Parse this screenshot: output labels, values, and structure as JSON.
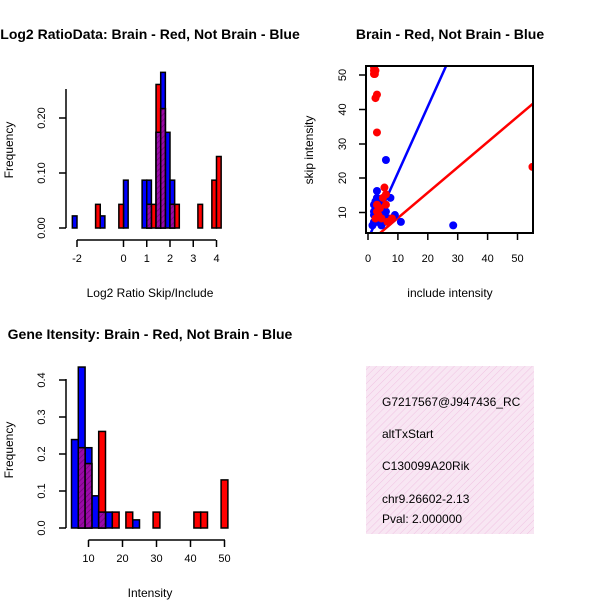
{
  "chart_data": [
    {
      "id": "ratio",
      "type": "bar",
      "title": "Log2 RatioData: Brain - Red, Not Brain - Blue",
      "xlabel": "Log2 Ratio Skip/Include",
      "ylabel": "Frequency",
      "x_ticks": [
        "-2",
        "0",
        "1",
        "2",
        "3",
        "4"
      ],
      "y_ticks": [
        "0.00",
        "0.10",
        "0.20"
      ],
      "series": [
        {
          "name": "Not Brain",
          "color": "#0000ff",
          "bins": [
            [
              -2.2,
              -2.0,
              0.022
            ],
            [
              -1.0,
              -0.8,
              0.022
            ],
            [
              0.0,
              0.2,
              0.087
            ],
            [
              0.8,
              1.0,
              0.087
            ],
            [
              1.0,
              1.2,
              0.087
            ],
            [
              1.4,
              1.6,
              0.174
            ],
            [
              1.6,
              1.8,
              0.283
            ],
            [
              1.8,
              2.0,
              0.174
            ],
            [
              2.0,
              2.2,
              0.087
            ]
          ]
        },
        {
          "name": "Brain",
          "color": "#ff0000",
          "bins": [
            [
              -1.2,
              -1.0,
              0.043
            ],
            [
              -0.2,
              0.0,
              0.043
            ],
            [
              1.0,
              1.2,
              0.043
            ],
            [
              1.2,
              1.4,
              0.043
            ],
            [
              1.4,
              1.6,
              0.261
            ],
            [
              1.6,
              1.8,
              0.217
            ],
            [
              2.0,
              2.2,
              0.043
            ],
            [
              2.2,
              2.4,
              0.043
            ],
            [
              3.2,
              3.4,
              0.043
            ],
            [
              3.8,
              4.0,
              0.087
            ],
            [
              4.0,
              4.2,
              0.13
            ]
          ]
        }
      ]
    },
    {
      "id": "scatter",
      "type": "scatter",
      "title": "Brain - Red, Not Brain - Blue",
      "xlabel": "include intensity",
      "ylabel": "skip intensity",
      "x_ticks": [
        "0",
        "10",
        "20",
        "30",
        "40",
        "50"
      ],
      "y_ticks": [
        "10",
        "20",
        "30",
        "40",
        "50"
      ],
      "xlim": [
        -0.5,
        56
      ],
      "ylim": [
        3.8,
        52.5
      ],
      "series": [
        {
          "name": "Not Brain",
          "color": "#0000ff",
          "points": [
            [
              1.5,
              6
            ],
            [
              2,
              7
            ],
            [
              2,
              9
            ],
            [
              2,
              10
            ],
            [
              2,
              12
            ],
            [
              2.5,
              8
            ],
            [
              2.5,
              11
            ],
            [
              2.5,
              13
            ],
            [
              3,
              7
            ],
            [
              3,
              9
            ],
            [
              3,
              10
            ],
            [
              3,
              12
            ],
            [
              3,
              14
            ],
            [
              3,
              16
            ],
            [
              3.5,
              8
            ],
            [
              3.5,
              10
            ],
            [
              4,
              7
            ],
            [
              4,
              9
            ],
            [
              4,
              11
            ],
            [
              4,
              13
            ],
            [
              4.5,
              6
            ],
            [
              4.5,
              8
            ],
            [
              5,
              9
            ],
            [
              5,
              11
            ],
            [
              5.5,
              7
            ],
            [
              5.5,
              8
            ],
            [
              6,
              10
            ],
            [
              6,
              25
            ],
            [
              7,
              8
            ],
            [
              7.5,
              14
            ],
            [
              8,
              8
            ],
            [
              9,
              9
            ],
            [
              11,
              7
            ],
            [
              28.5,
              6
            ]
          ],
          "fit": [
            [
              0,
              2
            ],
            [
              27.5,
              55
            ]
          ]
        },
        {
          "name": "Brain",
          "color": "#ff0000",
          "points": [
            [
              2,
              50
            ],
            [
              2,
              51
            ],
            [
              2,
              52
            ],
            [
              2.3,
              50
            ],
            [
              2.5,
              51
            ],
            [
              2.5,
              43
            ],
            [
              3,
              44
            ],
            [
              3,
              33
            ],
            [
              2.5,
              8
            ],
            [
              3,
              10
            ],
            [
              3,
              12
            ],
            [
              3.5,
              9
            ],
            [
              4,
              11
            ],
            [
              4.5,
              8
            ],
            [
              5,
              14
            ],
            [
              5.5,
              17
            ],
            [
              6,
              15
            ],
            [
              6,
              12
            ],
            [
              6.5,
              7
            ],
            [
              8,
              8
            ],
            [
              55,
              23
            ]
          ],
          "fit": [
            [
              3,
              3
            ],
            [
              56,
              42
            ]
          ]
        }
      ]
    },
    {
      "id": "intensity",
      "type": "bar",
      "title": "Gene Itensity: Brain - Red, Not Brain - Blue",
      "xlabel": "Intensity",
      "ylabel": "Frequency",
      "x_ticks": [
        "10",
        "20",
        "30",
        "40",
        "50"
      ],
      "y_ticks": [
        "0.0",
        "0.1",
        "0.2",
        "0.3",
        "0.4"
      ],
      "series": [
        {
          "name": "Not Brain",
          "color": "#0000ff",
          "bins": [
            [
              5,
              7,
              0.239
            ],
            [
              7,
              9,
              0.435
            ],
            [
              9,
              11,
              0.217
            ],
            [
              11,
              13,
              0.087
            ],
            [
              13,
              15,
              0.043
            ],
            [
              15,
              17,
              0.043
            ],
            [
              23,
              25,
              0.022
            ]
          ]
        },
        {
          "name": "Brain",
          "color": "#ff0000",
          "bins": [
            [
              7,
              9,
              0.217
            ],
            [
              9,
              11,
              0.174
            ],
            [
              13,
              15,
              0.261
            ],
            [
              17,
              19,
              0.043
            ],
            [
              21,
              23,
              0.043
            ],
            [
              29,
              31,
              0.043
            ],
            [
              41,
              43,
              0.043
            ],
            [
              43,
              45,
              0.043
            ],
            [
              49,
              51,
              0.13
            ]
          ]
        }
      ]
    }
  ],
  "info_panel": {
    "lines": [
      "G7217567@J947436_RC",
      "altTxStart",
      "C130099A20Rik",
      "chr9.26602-2.13"
    ],
    "pval": "Pval: 2.000000",
    "pval_color": "#cc0000"
  }
}
